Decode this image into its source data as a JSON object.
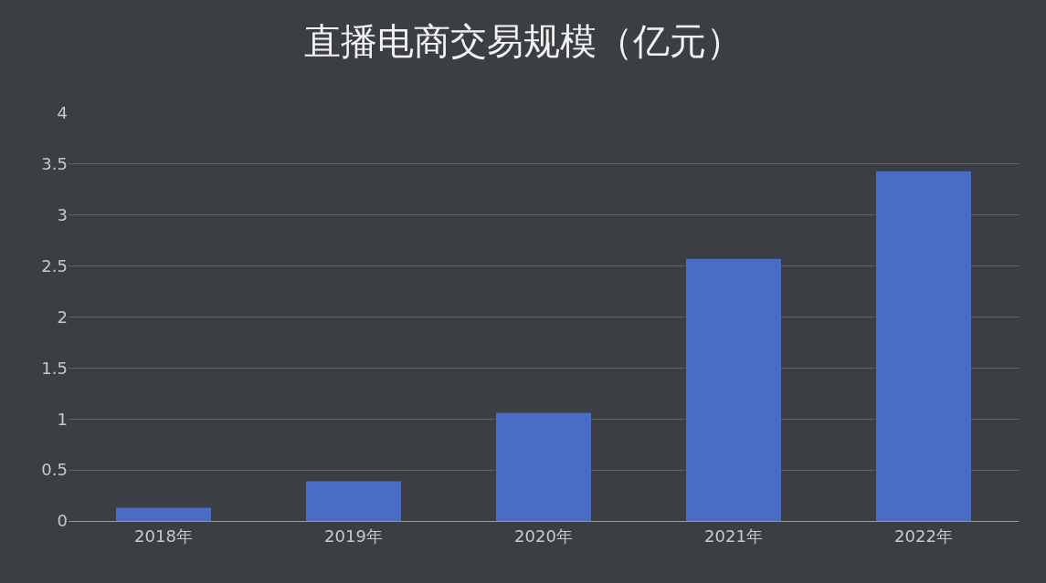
{
  "chart_data": {
    "type": "bar",
    "title": "直播电商交易规模（亿元）",
    "categories": [
      "2018年",
      "2019年",
      "2020年",
      "2021年",
      "2022年"
    ],
    "values": [
      0.13,
      0.39,
      1.06,
      2.57,
      3.43
    ],
    "color": "#4a6cc4",
    "ylim": [
      0,
      4
    ],
    "yticks": [
      0,
      0.5,
      1,
      1.5,
      2,
      2.5,
      3,
      3.5,
      4
    ],
    "grid": "y",
    "legend": false
  }
}
